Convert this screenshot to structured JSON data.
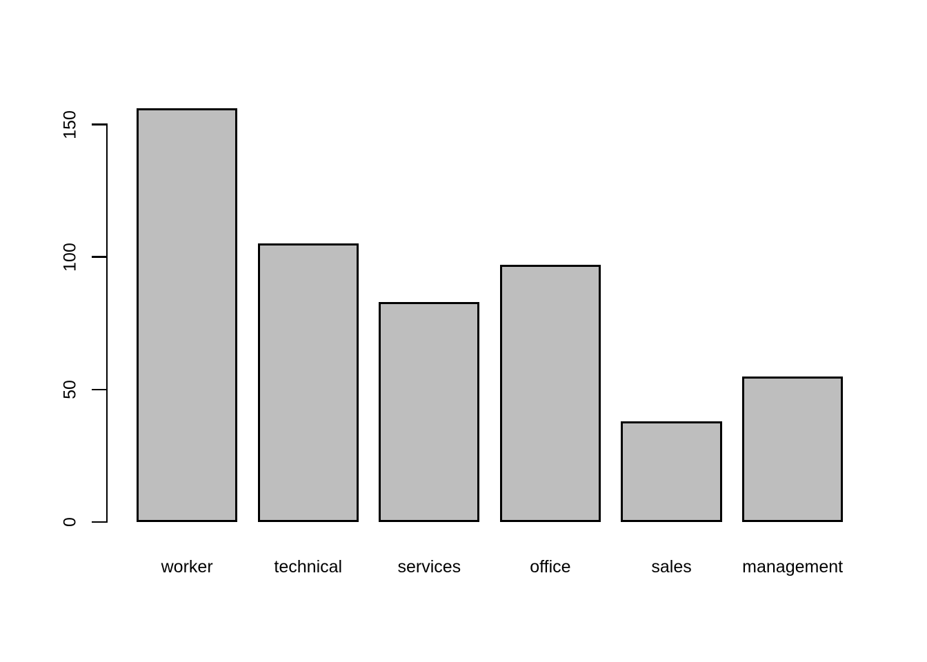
{
  "figure": {
    "background": "#FFFFFF",
    "title": ""
  },
  "chart_data": {
    "type": "bar",
    "categories": [
      "worker",
      "technical",
      "services",
      "office",
      "sales",
      "management"
    ],
    "values": [
      156,
      105,
      83,
      97,
      38,
      55
    ],
    "title": "",
    "xlabel": "",
    "ylabel": "",
    "yticks": [
      0,
      50,
      100,
      150
    ],
    "ylim": [
      0,
      156
    ],
    "grid": false,
    "legend": false,
    "bar_fill": "#BEBEBE",
    "bar_border": "#000000",
    "axis_color": "#000000",
    "text_color": "#000000",
    "ytick_label_rotation_deg": -90
  }
}
